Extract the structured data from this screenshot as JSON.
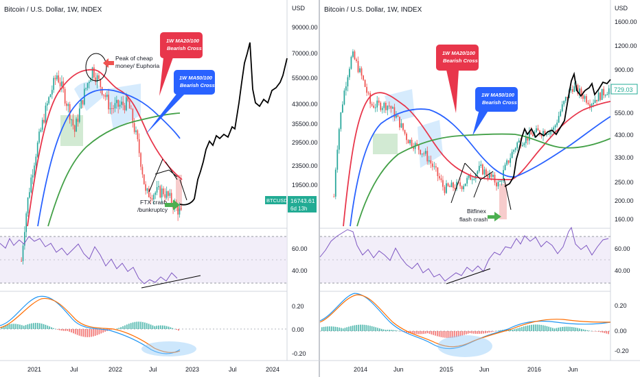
{
  "panels": [
    {
      "title": "Bitcoin / U.S. Dollar, 1W, INDEX",
      "currency": "USD",
      "price_ticks": [
        "90000.00",
        "70000.00",
        "55000.00",
        "43000.00",
        "35500.00",
        "29500.00",
        "23500.00",
        "19500.00"
      ],
      "rsi_ticks": [
        "60.00",
        "40.00"
      ],
      "macd_ticks": [
        "0.20",
        "0.00",
        "-0.20"
      ],
      "time_ticks": [
        "2021",
        "Jul",
        "2022",
        "Jul",
        "2023",
        "Jul",
        "2024"
      ],
      "price_badge": {
        "symbol": "BTCUSD",
        "price": "16743.61",
        "countdown": "6d 13h"
      },
      "annotations": {
        "peak": "Peak of cheap money/ Euphoria",
        "bubble_red": "1W MA20/100 Bearish Cross",
        "bubble_blue": "1W MA50/100 Bearish Cross",
        "crash": "FTX crash /bunkruptcy"
      }
    },
    {
      "title": "Bitcoin / U.S. Dollar, 1W, INDEX",
      "currency": "USD",
      "price_ticks": [
        "1600.00",
        "1200.00",
        "900.00",
        "550.00",
        "430.00",
        "330.00",
        "250.00",
        "200.00",
        "160.00"
      ],
      "price_badge": {
        "price": "729.03"
      },
      "rsi_ticks": [
        "60.00",
        "40.00"
      ],
      "macd_ticks": [
        "0.20",
        "0.00",
        "-0.20"
      ],
      "time_ticks": [
        "2014",
        "Jun",
        "2015",
        "Jun",
        "2016",
        "Jun"
      ],
      "annotations": {
        "bubble_red": "1W MA20/100 Bearish Cross",
        "bubble_blue": "1W MA50/100 Bearish Cross",
        "crash": "Bitfinex flash crash"
      }
    }
  ],
  "colors": {
    "up": "#26a69a",
    "down": "#ef5350",
    "ma_red": "#e8364b",
    "ma_blue": "#2962ff",
    "ma_green": "#43a047",
    "rsi": "#7e57c2",
    "macd": "#2196f3",
    "signal": "#ff6d00",
    "projection": "#000000",
    "badge": "#22ab94"
  },
  "chart_data": [
    {
      "type": "line",
      "title": "Bitcoin / U.S. Dollar, 1W, INDEX",
      "ylabel": "USD",
      "scale": "log",
      "x": [
        "2020-10",
        "2021-01",
        "2021-04",
        "2021-07",
        "2021-10",
        "2022-01",
        "2022-04",
        "2022-07",
        "2022-10",
        "2022-11",
        "2023-01",
        "2023-04",
        "2023-07",
        "2023-10",
        "2024-01",
        "2024-03"
      ],
      "series": [
        {
          "name": "",
          "values": [
            11000,
            33000,
            58000,
            35000,
            61000,
            43000,
            45000,
            20000,
            20500,
            16700,
            22000,
            29000,
            50000,
            43000,
            55000,
            72000
          ]
        }
      ],
      "ylim": [
        15000,
        100000
      ]
    },
    {
      "type": "line",
      "title": "Bitcoin / U.S. Dollar, 1W, INDEX",
      "ylabel": "USD",
      "scale": "log",
      "x": [
        "2013-10",
        "2013-12",
        "2014-03",
        "2014-06",
        "2014-09",
        "2014-12",
        "2015-01",
        "2015-04",
        "2015-07",
        "2015-08",
        "2015-11",
        "2016-01",
        "2016-04",
        "2016-06",
        "2016-09",
        "2016-10"
      ],
      "series": [
        {
          "name": "",
          "values": [
            200,
            1100,
            600,
            600,
            400,
            330,
            220,
            230,
            280,
            230,
            380,
            430,
            450,
            750,
            620,
            729
          ]
        }
      ],
      "ylim": [
        140,
        1800
      ]
    }
  ]
}
